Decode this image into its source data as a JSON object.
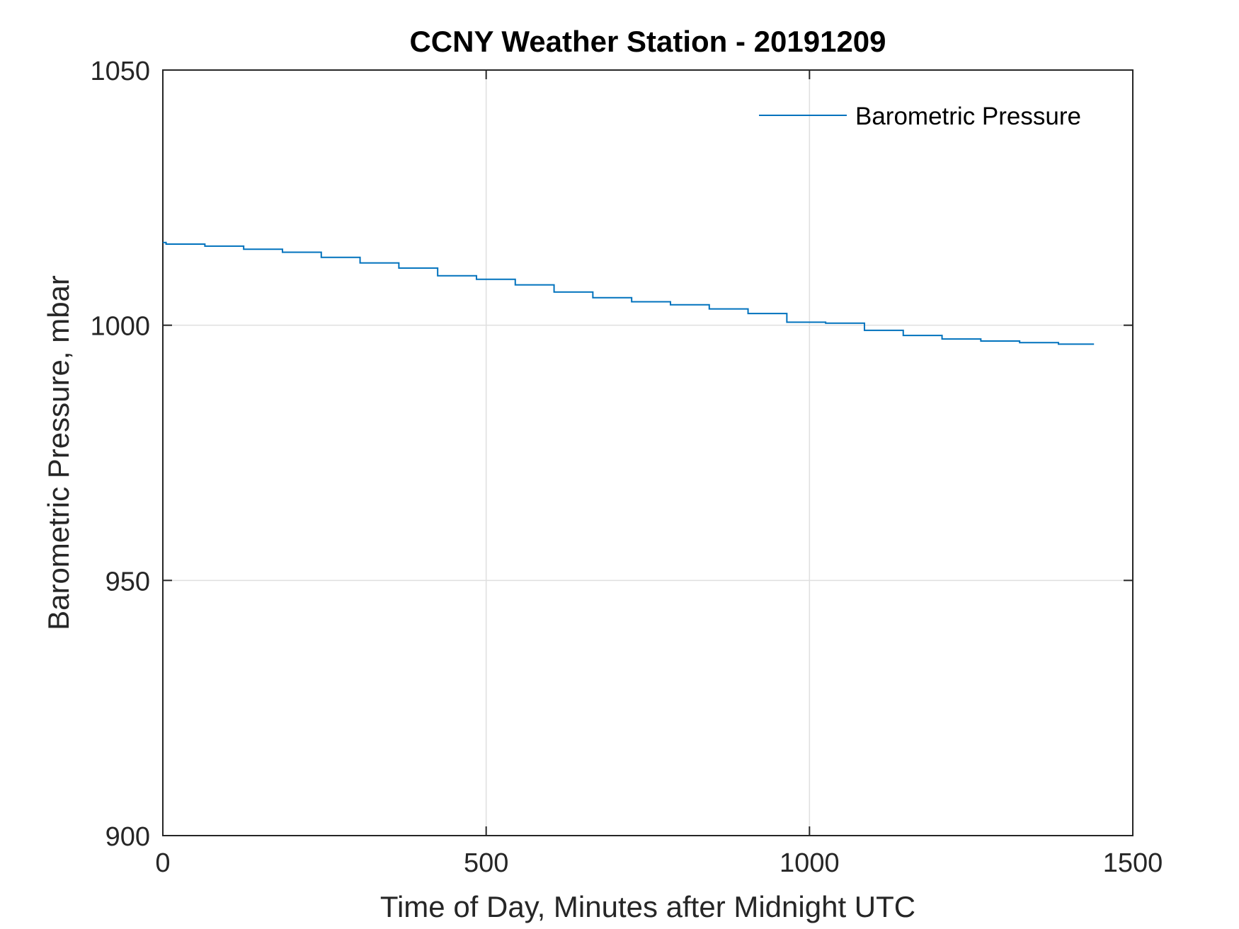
{
  "chart_data": {
    "type": "line",
    "title": "CCNY Weather Station - 20191209",
    "xlabel": "Time of Day, Minutes after Midnight UTC",
    "ylabel": "Barometric Pressure, mbar",
    "xlim": [
      0,
      1500
    ],
    "ylim": [
      900,
      1050
    ],
    "xticks": [
      0,
      500,
      1000,
      1500
    ],
    "yticks": [
      900,
      950,
      1000,
      1050
    ],
    "xtick_labels": [
      "0",
      "500",
      "1000",
      "1500"
    ],
    "ytick_labels": [
      "900",
      "950",
      "1000",
      "1050"
    ],
    "grid": true,
    "legend_position": "top-right",
    "series": [
      {
        "name": "Barometric Pressure",
        "color": "#0072BD",
        "step": true,
        "x": [
          0,
          5,
          65,
          125,
          185,
          245,
          305,
          365,
          425,
          485,
          545,
          605,
          665,
          725,
          785,
          845,
          905,
          965,
          1025,
          1085,
          1145,
          1205,
          1265,
          1325,
          1385,
          1440
        ],
        "y": [
          1016.2,
          1015.9,
          1015.5,
          1014.9,
          1014.3,
          1013.3,
          1012.2,
          1011.2,
          1009.7,
          1009.0,
          1007.9,
          1006.5,
          1005.4,
          1004.6,
          1004.0,
          1003.2,
          1002.3,
          1000.6,
          1000.4,
          999.0,
          998.0,
          997.3,
          996.9,
          996.6,
          996.3,
          996.3
        ]
      }
    ],
    "colors": {
      "axis": "#262626",
      "grid": "#dfdfdf",
      "background": "#ffffff"
    }
  }
}
